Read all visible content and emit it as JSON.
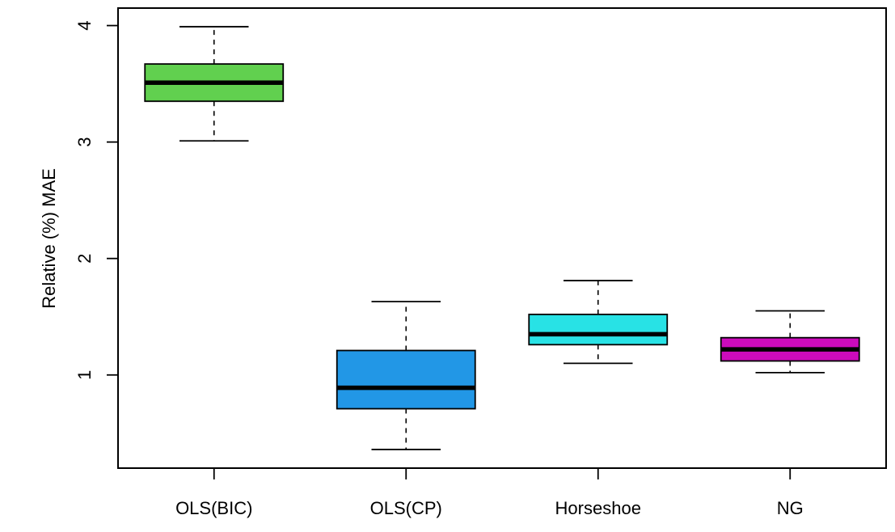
{
  "chart_data": {
    "type": "boxplot",
    "title": "",
    "xlabel": "",
    "ylabel": "Relative (%) MAE",
    "categories": [
      "OLS(BIC)",
      "OLS(CP)",
      "Horseshoe",
      "NG"
    ],
    "colors": [
      "#61D04F",
      "#2297E6",
      "#28E2E5",
      "#CD0BBC"
    ],
    "y_ticks": [
      1,
      2,
      3,
      4
    ],
    "y_tick_labels": [
      "1",
      "2",
      "3",
      "4"
    ],
    "ylim": [
      0.2,
      4.15
    ],
    "boxes": [
      {
        "whisker_low": 3.01,
        "q1": 3.35,
        "median": 3.51,
        "q3": 3.67,
        "whisker_high": 3.99
      },
      {
        "whisker_low": 0.36,
        "q1": 0.71,
        "median": 0.89,
        "q3": 1.21,
        "whisker_high": 1.63
      },
      {
        "whisker_low": 1.1,
        "q1": 1.26,
        "median": 1.35,
        "q3": 1.52,
        "whisker_high": 1.81
      },
      {
        "whisker_low": 1.02,
        "q1": 1.12,
        "median": 1.22,
        "q3": 1.32,
        "whisker_high": 1.55
      }
    ],
    "grid": false,
    "legend": "none"
  }
}
